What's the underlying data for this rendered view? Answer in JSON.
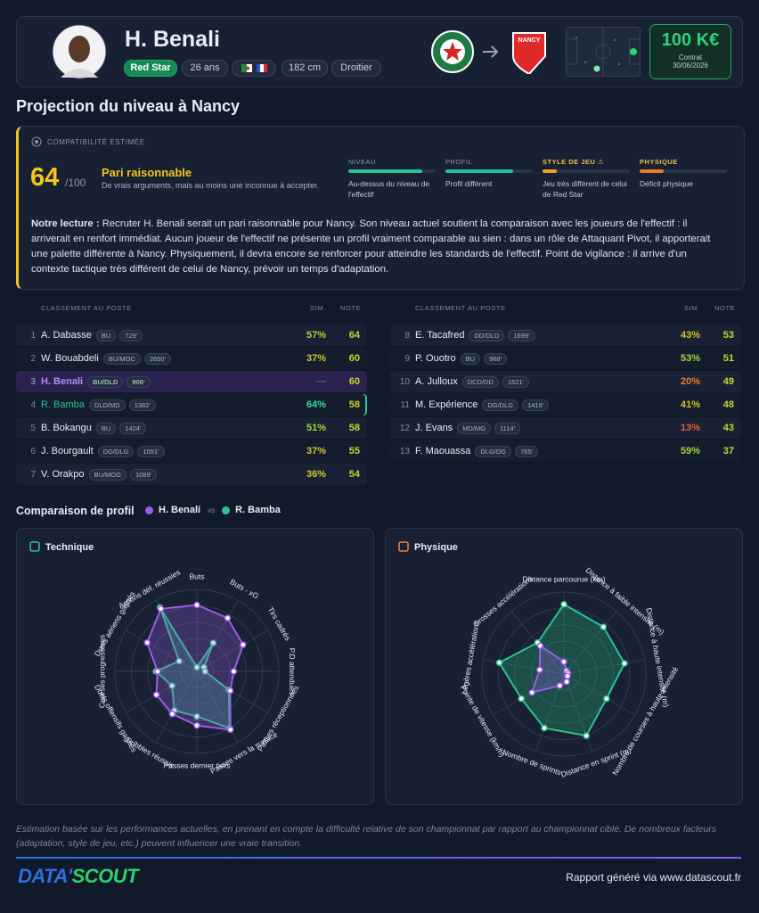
{
  "header": {
    "name": "H. Benali",
    "club": "Red Star",
    "age": "26 ans",
    "height": "182 cm",
    "foot": "Droitier",
    "target_logo_text": "NANCY",
    "value": "100 K€",
    "contract_label": "Contrat",
    "contract_date": "30/06/2026"
  },
  "section_title": "Projection du niveau à Nancy",
  "compatibility": {
    "label": "COMPATIBILITÉ ESTIMÉE",
    "score": 64,
    "out_of": "/100",
    "verdict": "Pari raisonnable",
    "verdict_desc": "De vrais arguments, mais au moins une inconnue à accepter.",
    "criteria": [
      {
        "label": "NIVEAU",
        "bar": 85,
        "color": "#2bc48a",
        "desc": "Au-dessus du niveau de l'effectif"
      },
      {
        "label": "PROFIL",
        "bar": 78,
        "color": "#22c1a3",
        "desc": "Profil différent"
      },
      {
        "label": "STYLE DE JEU ⚠",
        "bar": 16,
        "color": "#f0a11f",
        "desc": "Jeu très différent de celui de Red Star"
      },
      {
        "label": "PHYSIQUE",
        "bar": 28,
        "color": "#f07c2a",
        "desc": "Déficit physique"
      }
    ],
    "reading_lead": "Notre lecture :",
    "reading": "Recruter H. Benali serait un pari raisonnable pour Nancy. Son niveau actuel soutient la comparaison avec les joueurs de l'effectif : il arriverait en renfort immédiat. Aucun joueur de l'effectif ne présente un profil vraiment comparable au sien : dans un rôle de Attaquant Pivot, il apporterait une palette différente à Nancy. Physiquement, il devra encore se renforcer pour atteindre les standards de l'effectif. Point de vigilance : il arrive d'un contexte tactique très différent de celui de Nancy, prévoir un temps d'adaptation."
  },
  "ranking": {
    "headers": [
      "CLASSEMENT AU POSTE",
      "SIM.",
      "NOTE"
    ],
    "rows": [
      [
        "1",
        "A. Dabasse",
        "BU",
        "729'",
        "57%",
        64
      ],
      [
        "2",
        "W. Bouabdeli",
        "BU/MOC",
        "2650'",
        "37%",
        60
      ],
      [
        "3",
        "H. Benali",
        "BU/DLD",
        "906'",
        "—",
        60
      ],
      [
        "4",
        "R. Bamba",
        "DLD/MD",
        "1382'",
        "64%",
        58
      ],
      [
        "5",
        "B. Bokangu",
        "BU",
        "1424'",
        "51%",
        58
      ],
      [
        "6",
        "J. Bourgault",
        "DG/DLG",
        "1051'",
        "37%",
        55
      ],
      [
        "7",
        "V. Orakpo",
        "BU/MOG",
        "1089'",
        "36%",
        54
      ],
      [
        "8",
        "E. Tacafred",
        "DD/DLD",
        "1699'",
        "43%",
        53
      ],
      [
        "9",
        "P. Ouotro",
        "BU",
        "968'",
        "53%",
        51
      ],
      [
        "10",
        "A. Julloux",
        "DCD/DD",
        "1521'",
        "20%",
        49
      ],
      [
        "11",
        "M. Expérience",
        "DG/DLG",
        "1416'",
        "41%",
        48
      ],
      [
        "12",
        "J. Evans",
        "MD/MG",
        "1114'",
        "13%",
        43
      ],
      [
        "13",
        "F. Maouassa",
        "DLG/DG",
        "765'",
        "59%",
        37
      ]
    ]
  },
  "comparison": {
    "title": "Comparaison de profil",
    "vs": "vs",
    "players": [
      {
        "name": "H. Benali",
        "color": "#9b5de5"
      },
      {
        "name": "R. Bamba",
        "color": "#2bc48a"
      }
    ],
    "rlim": [
      0,
      100
    ],
    "rticks": [
      20,
      40,
      60,
      80,
      100
    ],
    "radars": [
      {
        "title": "Technique",
        "axes": [
          "Buts",
          "Buts - xG",
          "Tirs cadrés",
          "P.D attendues",
          "Passes réceptionnées",
          "Passes vers la surface",
          "Passes dernier tiers",
          "Dribbles réussis",
          "Duels offensifs gagnés",
          "Courses progressives",
          "Duels aériens gagnés",
          "Actions déf. réussies"
        ],
        "values": [
          [
            81,
            75,
            65,
            45,
            47,
            82,
            66,
            60,
            57,
            48,
            70,
            88
          ],
          [
            5,
            40,
            10,
            10,
            45,
            80,
            55,
            55,
            35,
            50,
            25,
            90
          ]
        ]
      },
      {
        "title": "Physique",
        "axes": [
          "Distance parcourue (km)",
          "Distance à faible intensité (m)",
          "Distance à haute intensité (m)",
          "Nombre de courses à haute intensité",
          "Distance en sprint (m)",
          "Nombre de sprints",
          "Pointe de vitesse (km/h)",
          "Légères accélérations",
          "Grosses accélérations"
        ],
        "values": [
          [
            15,
            5,
            5,
            5,
            10,
            15,
            45,
            30,
            45
          ],
          [
            85,
            75,
            75,
            60,
            80,
            70,
            60,
            80,
            50
          ]
        ]
      }
    ]
  },
  "footer": {
    "disclaimer": "Estimation basée sur les performances actuelles, en prenant en compte la difficulté relative de son championnat par rapport au championnat ciblé. De nombreux facteurs (adaptation, style de jeu, etc.) peuvent influencer une vraie transition.",
    "logo_parts": [
      "DATA'",
      "SCOUT"
    ],
    "credit": "Rapport généré via www.datascout.fr"
  }
}
